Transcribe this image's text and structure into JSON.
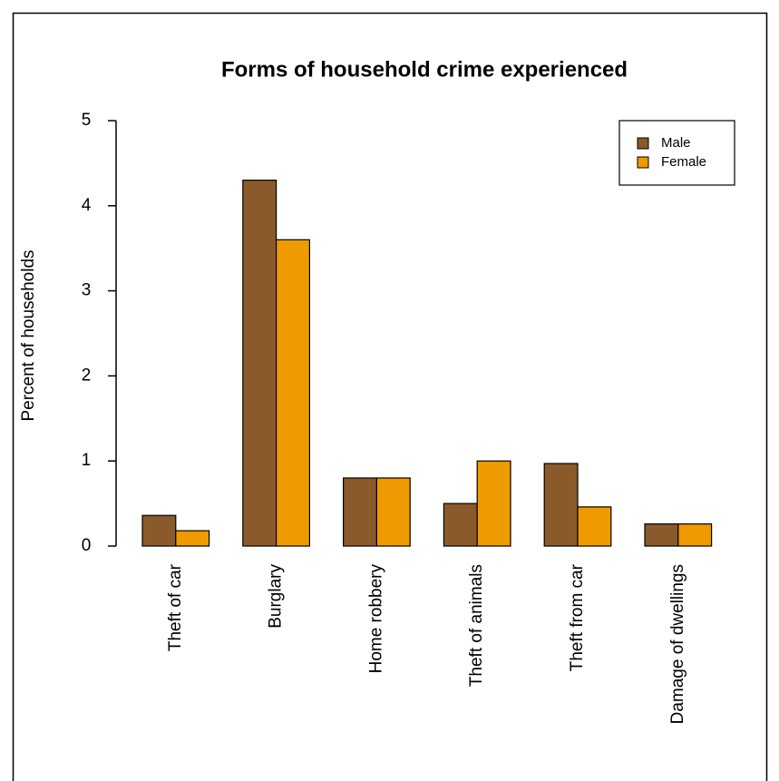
{
  "chart_data": {
    "type": "bar",
    "title": "Forms of household crime experienced",
    "y_label": "Percent of households",
    "categories": [
      "Theft of car",
      "Burglary",
      "Home robbery",
      "Theft of animals",
      "Theft from car",
      "Damage of dwellings"
    ],
    "series": [
      {
        "name": "Male",
        "color": "#8b5a2b",
        "values": [
          0.36,
          4.3,
          0.8,
          0.5,
          0.97,
          0.26
        ]
      },
      {
        "name": "Female",
        "color": "#ee9a00",
        "values": [
          0.18,
          3.6,
          0.8,
          1.0,
          0.46,
          0.26
        ]
      }
    ],
    "ylim": [
      0,
      5
    ],
    "yticks": [
      0,
      1,
      2,
      3,
      4,
      5
    ],
    "grid": false,
    "legend": "top-right"
  }
}
